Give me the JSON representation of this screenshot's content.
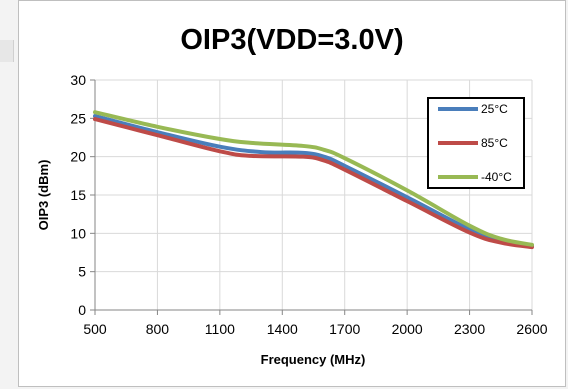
{
  "chart_data": {
    "type": "line",
    "title": "OIP3(VDD=3.0V)",
    "xlabel": "Frequency (MHz)",
    "ylabel": "OIP3 (dBm)",
    "xlim": [
      500,
      2600
    ],
    "ylim": [
      0,
      30
    ],
    "x_ticks": [
      500,
      800,
      1100,
      1400,
      1700,
      2000,
      2300,
      2600
    ],
    "y_ticks": [
      0,
      5,
      10,
      15,
      20,
      25,
      30
    ],
    "grid": true,
    "legend_position": "top-right",
    "series": [
      {
        "name": "25°C",
        "color": "#4a7ebb",
        "points": [
          [
            500,
            25.3
          ],
          [
            800,
            23.2
          ],
          [
            1100,
            21.3
          ],
          [
            1300,
            20.6
          ],
          [
            1500,
            20.5
          ],
          [
            1600,
            20.0
          ],
          [
            1700,
            18.8
          ],
          [
            2000,
            14.7
          ],
          [
            2300,
            10.5
          ],
          [
            2450,
            9.0
          ],
          [
            2600,
            8.4
          ]
        ]
      },
      {
        "name": "85°C",
        "color": "#be4b48",
        "points": [
          [
            500,
            24.9
          ],
          [
            800,
            22.8
          ],
          [
            1100,
            20.7
          ],
          [
            1250,
            20.1
          ],
          [
            1500,
            20.0
          ],
          [
            1600,
            19.5
          ],
          [
            1700,
            18.3
          ],
          [
            2000,
            14.2
          ],
          [
            2300,
            10.1
          ],
          [
            2450,
            8.8
          ],
          [
            2600,
            8.2
          ]
        ]
      },
      {
        "name": "-40°C",
        "color": "#98b954",
        "points": [
          [
            500,
            25.8
          ],
          [
            800,
            23.9
          ],
          [
            1100,
            22.3
          ],
          [
            1250,
            21.8
          ],
          [
            1500,
            21.4
          ],
          [
            1600,
            20.9
          ],
          [
            1700,
            19.8
          ],
          [
            2000,
            15.6
          ],
          [
            2300,
            11.0
          ],
          [
            2450,
            9.3
          ],
          [
            2600,
            8.5
          ]
        ]
      }
    ]
  }
}
